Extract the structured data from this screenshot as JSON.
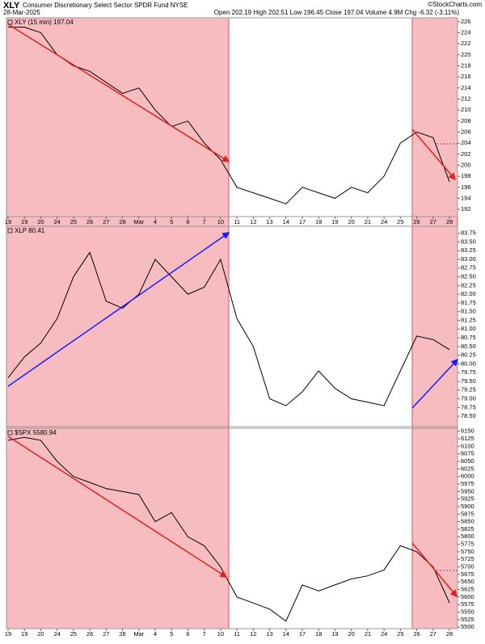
{
  "header": {
    "symbol": "XLY",
    "name": "Consumer Discretionary Select Sector SPDR Fund NYSE",
    "date": "28-Mar-2025",
    "quote": "Open 202.19 High 202.51 Low 196.45 Close 197.04 Volume 4.9M Chg -6.32 (-3.11%)",
    "credit": "©StockCharts.com"
  },
  "chart_data": [
    {
      "type": "line",
      "title": "XLY (15 min) 197.04",
      "color": "#000000",
      "categories": [
        "19",
        "19",
        "20",
        "24",
        "25",
        "26",
        "27",
        "28",
        "Mar",
        "4",
        "5",
        "6",
        "7",
        "10",
        "11",
        "12",
        "13",
        "14",
        "17",
        "18",
        "19",
        "20",
        "21",
        "24",
        "25",
        "26",
        "27",
        "28"
      ],
      "values": [
        225,
        225,
        224,
        220,
        218,
        217,
        215,
        213,
        214,
        210,
        207,
        208,
        204,
        201,
        196,
        195,
        194,
        193,
        196,
        195,
        194,
        196,
        195,
        198,
        204,
        206,
        205,
        197
      ],
      "ylim": [
        190.7,
        226.7
      ],
      "yticks": [
        192,
        194,
        196,
        198,
        200,
        202,
        204,
        206,
        208,
        210,
        212,
        214,
        216,
        218,
        220,
        222,
        224,
        226
      ]
    },
    {
      "type": "line",
      "title": "XLP 80.41",
      "color": "#000000",
      "values": [
        79.6,
        80.2,
        80.6,
        81.3,
        82.5,
        83.2,
        81.8,
        81.6,
        82.0,
        83.0,
        82.5,
        82.0,
        82.2,
        83.0,
        81.3,
        80.5,
        79.0,
        78.8,
        79.2,
        79.8,
        79.3,
        79.0,
        78.9,
        78.8,
        79.8,
        80.8,
        80.7,
        80.41
      ],
      "ylim": [
        78.2,
        83.95
      ],
      "yticks": [
        {
          "value": 78.5,
          "label": "78.50"
        },
        {
          "value": 78.75,
          "label": "78.75"
        },
        {
          "value": 79,
          "label": "79.00"
        },
        {
          "value": 79.25,
          "label": "79.25"
        },
        {
          "value": 79.5,
          "label": "79.50"
        },
        {
          "value": 79.75,
          "label": "79.75"
        },
        {
          "value": 80,
          "label": "80.00"
        },
        {
          "value": 80.25,
          "label": "80.25"
        },
        {
          "value": 80.5,
          "label": "80.50"
        },
        {
          "value": 80.75,
          "label": "80.75"
        },
        {
          "value": 81,
          "label": "81.00"
        },
        {
          "value": 81.25,
          "label": "81.25"
        },
        {
          "value": 81.5,
          "label": "81.50"
        },
        {
          "value": 81.75,
          "label": "81.75"
        },
        {
          "value": 82,
          "label": "82.00"
        },
        {
          "value": 82.25,
          "label": "82.25"
        },
        {
          "value": 82.5,
          "label": "82.50"
        },
        {
          "value": 82.75,
          "label": "82.75"
        },
        {
          "value": 83,
          "label": "83.00"
        },
        {
          "value": 83.25,
          "label": "83.25"
        },
        {
          "value": 83.5,
          "label": "83.50"
        },
        {
          "value": 83.75,
          "label": "83.75"
        }
      ]
    },
    {
      "type": "line",
      "title": "$SPX 5580.94",
      "color": "#000000",
      "categories": [
        "19",
        "19",
        "20",
        "24",
        "25",
        "26",
        "27",
        "28",
        "Mar",
        "4",
        "5",
        "6",
        "7",
        "10",
        "11",
        "12",
        "13",
        "14",
        "17",
        "18",
        "19",
        "20",
        "21",
        "24",
        "25",
        "26",
        "27",
        "28"
      ],
      "values": [
        6120,
        6130,
        6120,
        6050,
        6000,
        5980,
        5960,
        5950,
        5940,
        5850,
        5880,
        5800,
        5770,
        5700,
        5600,
        5580,
        5560,
        5520,
        5640,
        5620,
        5640,
        5660,
        5670,
        5690,
        5770,
        5750,
        5700,
        5580.94
      ],
      "ylim": [
        5495,
        6160
      ],
      "yticks": [
        5500,
        5525,
        5550,
        5575,
        5600,
        5625,
        5650,
        5675,
        5700,
        5725,
        5750,
        5775,
        5800,
        5825,
        5850,
        5875,
        5900,
        5925,
        5950,
        5975,
        6000,
        6025,
        6050,
        6075,
        6100,
        6125,
        6150
      ]
    }
  ]
}
